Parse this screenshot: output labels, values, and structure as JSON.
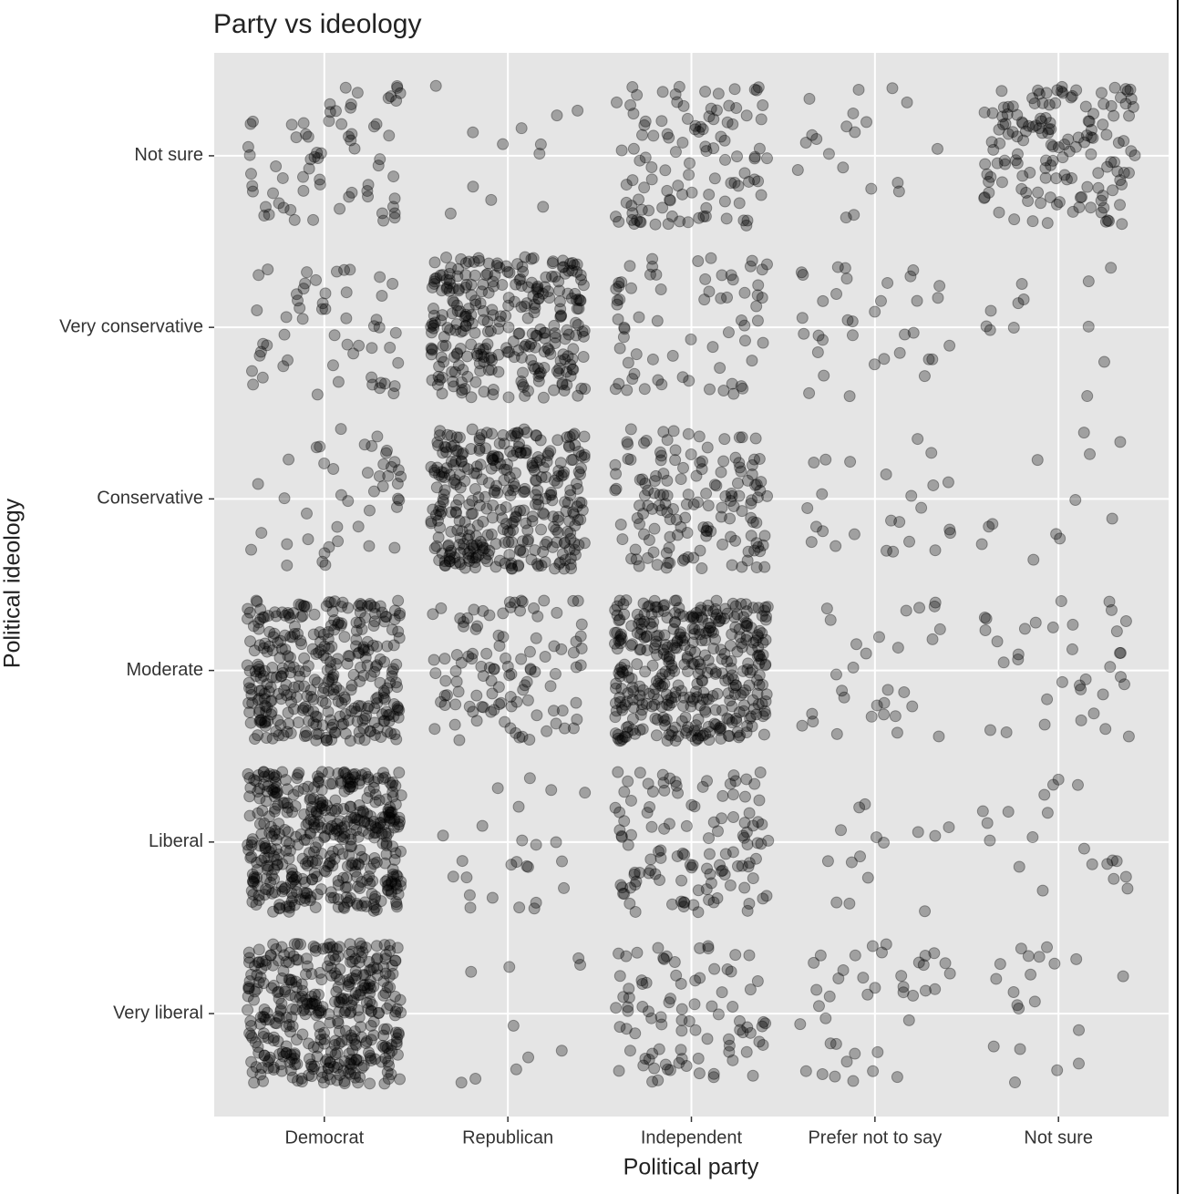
{
  "chart_data": {
    "type": "jitter",
    "title": "Party vs ideology",
    "x_label": "Political party",
    "y_label": "Political ideology",
    "x_categories": [
      "Democrat",
      "Republican",
      "Independent",
      "Prefer not to say",
      "Not sure"
    ],
    "y_categories": [
      "Very liberal",
      "Liberal",
      "Moderate",
      "Conservative",
      "Very conservative",
      "Not sure"
    ],
    "counts": [
      [
        400,
        450,
        350,
        45,
        55,
        70
      ],
      [
        10,
        25,
        110,
        350,
        300,
        12
      ],
      [
        90,
        120,
        400,
        150,
        70,
        110
      ],
      [
        40,
        15,
        30,
        25,
        35,
        20
      ],
      [
        20,
        20,
        35,
        12,
        12,
        150
      ]
    ],
    "color": "#000000",
    "grid": true
  }
}
